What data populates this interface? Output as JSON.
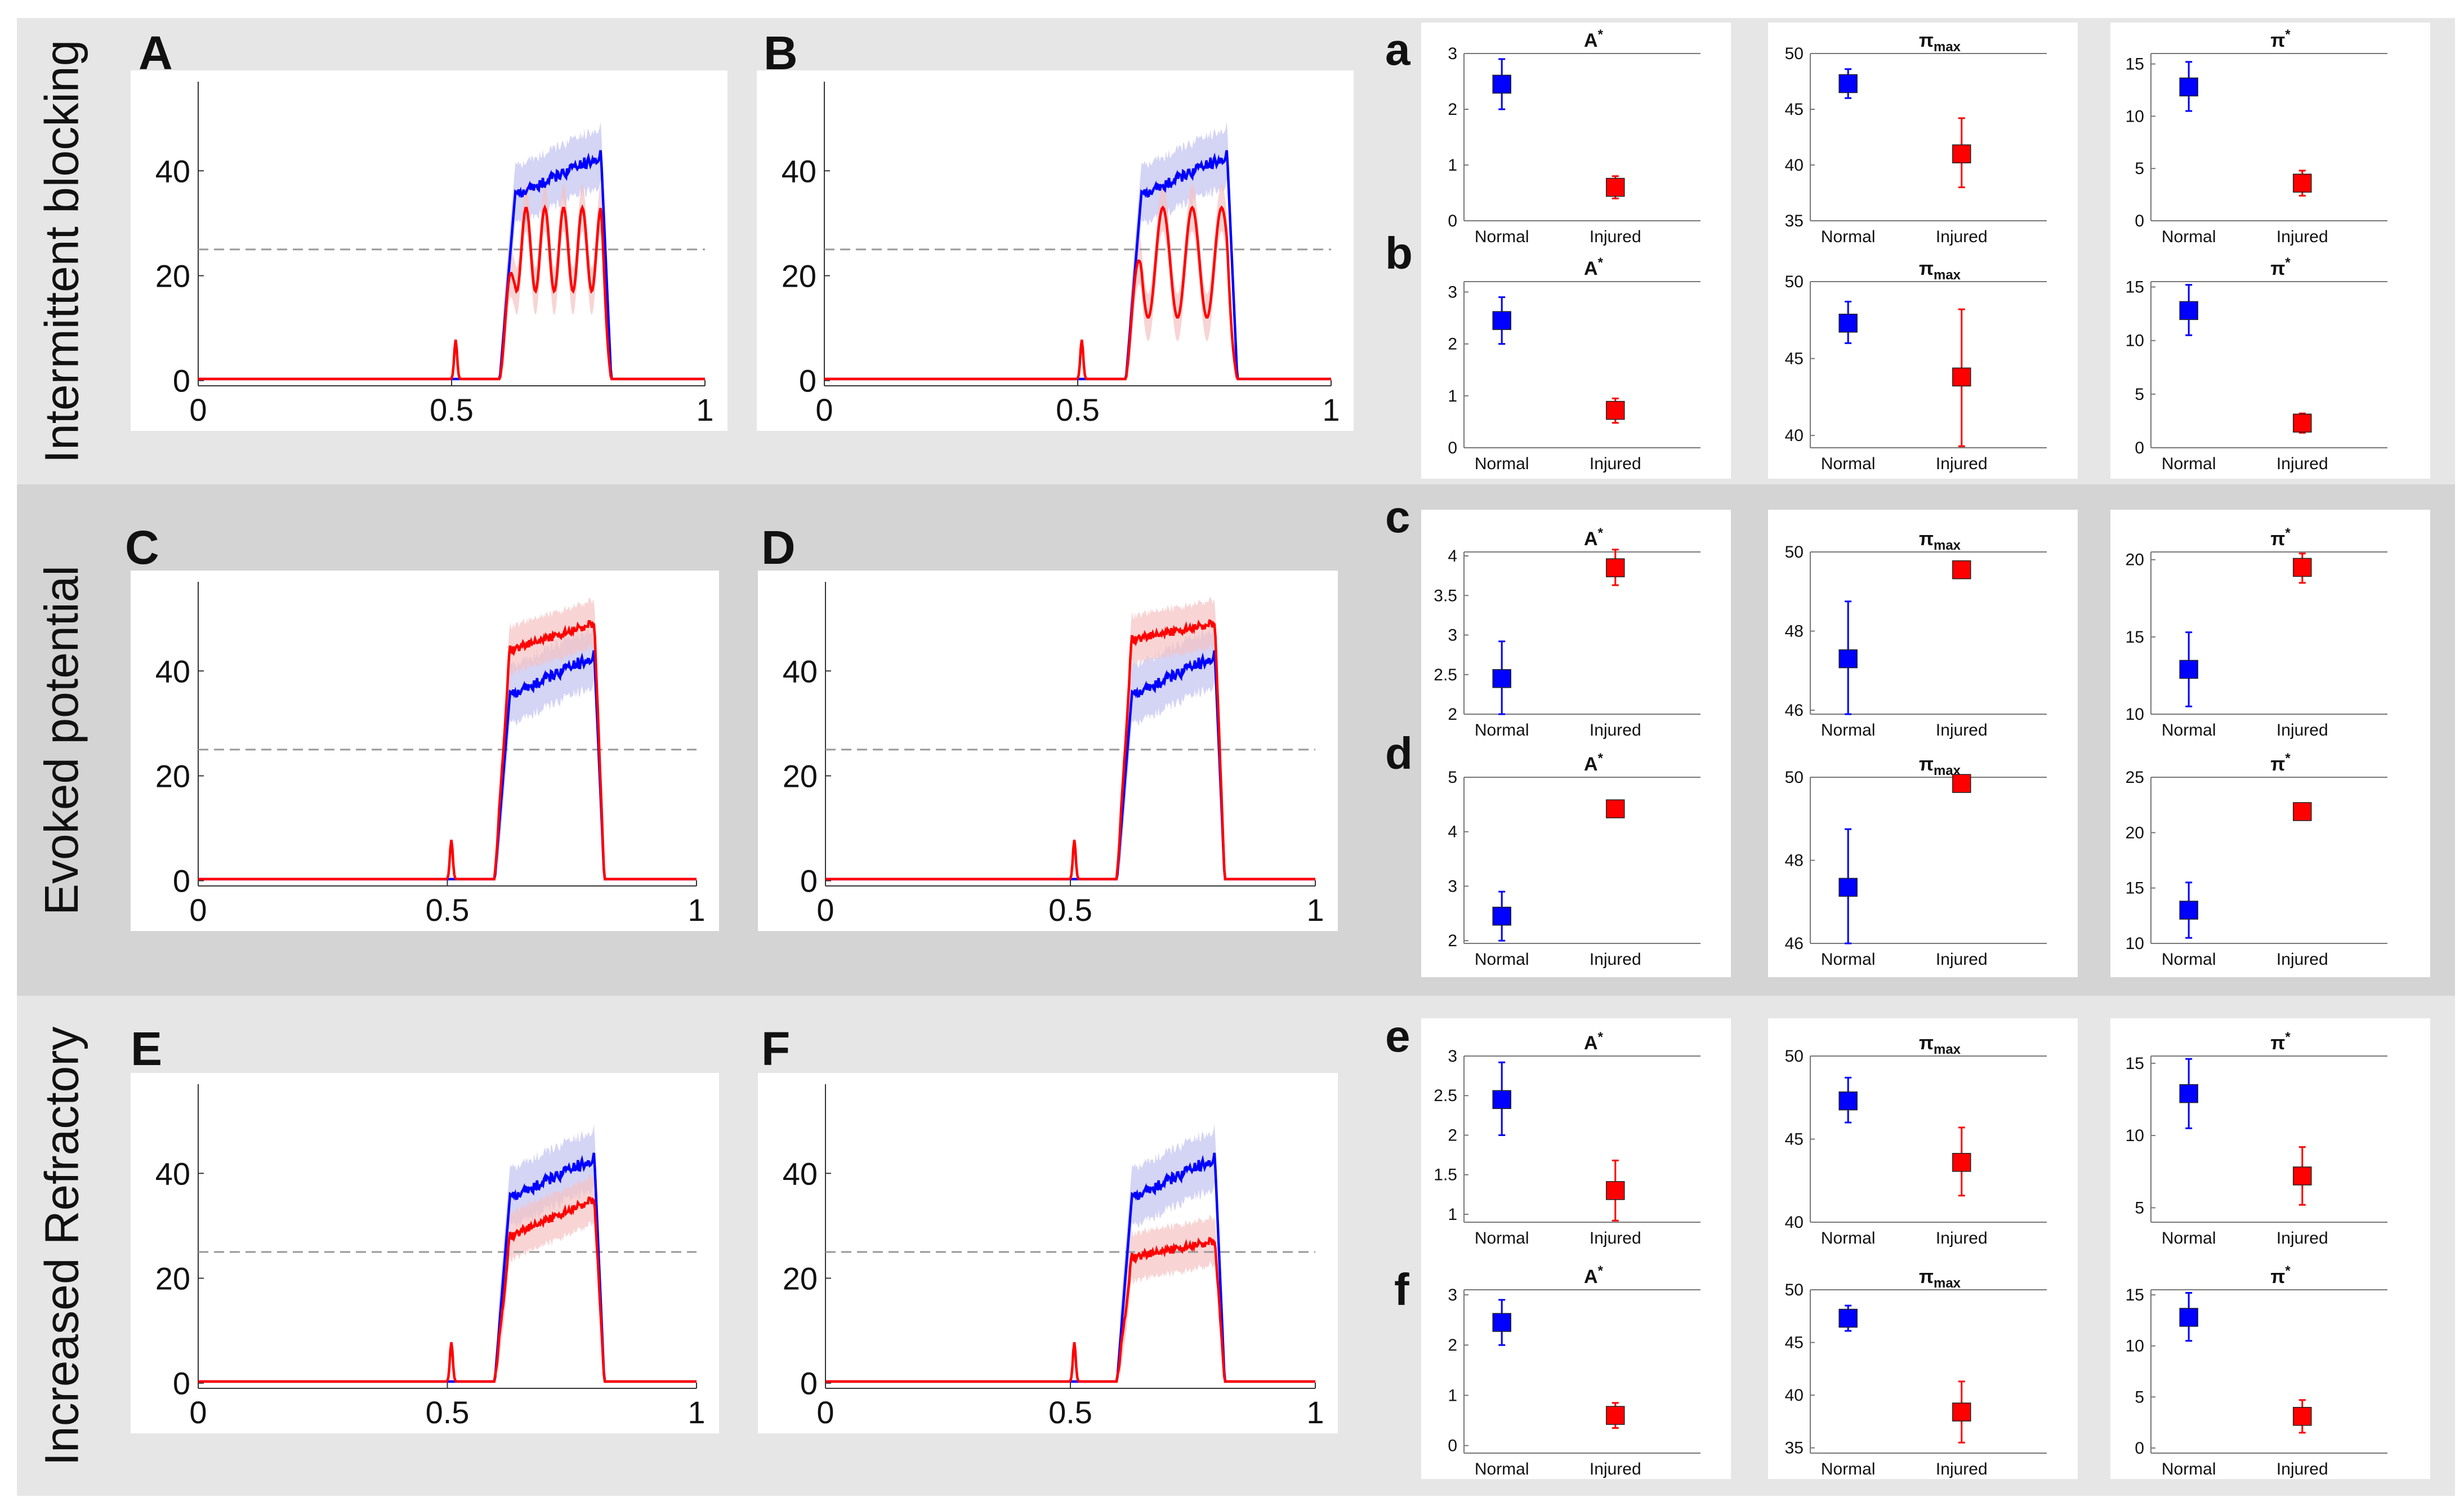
{
  "rows": [
    {
      "label": "Intermittent blocking"
    },
    {
      "label": "Evoked potential"
    },
    {
      "label": "Increased Refractory"
    }
  ],
  "colors": {
    "normal": "#0000ff",
    "injured": "#ff0000",
    "normal_band": "#c6c6f2",
    "injured_band": "#f5c2c2",
    "threshold": "#999999"
  },
  "chart_data": {
    "timeseries_panels": [
      {
        "label": "A",
        "type": "line",
        "x_ticks": [
          "0",
          "0.5",
          "1"
        ],
        "y_ticks": [
          "0",
          "20",
          "40"
        ],
        "xlim": [
          0,
          1
        ],
        "ylim": [
          -1,
          57
        ],
        "threshold": 25,
        "injured_mode": "oscillating",
        "blue_plateau": [
          35,
          43
        ],
        "red_peak": 33,
        "red_trough": 17
      },
      {
        "label": "B",
        "type": "line",
        "x_ticks": [
          "0",
          "0.5",
          "1"
        ],
        "y_ticks": [
          "0",
          "20",
          "40"
        ],
        "xlim": [
          0,
          1
        ],
        "ylim": [
          -1,
          57
        ],
        "threshold": 25,
        "injured_mode": "oscillating_slow",
        "blue_plateau": [
          35,
          43
        ],
        "red_peak": 33,
        "red_trough": 12
      },
      {
        "label": "C",
        "type": "line",
        "x_ticks": [
          "0",
          "0.5",
          "1"
        ],
        "y_ticks": [
          "0",
          "20",
          "40"
        ],
        "xlim": [
          0,
          1
        ],
        "ylim": [
          -1,
          57
        ],
        "threshold": 25,
        "injured_mode": "above",
        "blue_plateau": [
          35,
          43
        ],
        "red_plateau": [
          44,
          49
        ]
      },
      {
        "label": "D",
        "type": "line",
        "x_ticks": [
          "0",
          "0.5",
          "1"
        ],
        "y_ticks": [
          "0",
          "20",
          "40"
        ],
        "xlim": [
          0,
          1
        ],
        "ylim": [
          -1,
          57
        ],
        "threshold": 25,
        "injured_mode": "above",
        "blue_plateau": [
          35,
          43
        ],
        "red_plateau": [
          46,
          49
        ]
      },
      {
        "label": "E",
        "type": "line",
        "x_ticks": [
          "0",
          "0.5",
          "1"
        ],
        "y_ticks": [
          "0",
          "20",
          "40"
        ],
        "xlim": [
          0,
          1
        ],
        "ylim": [
          -1,
          57
        ],
        "threshold": 25,
        "injured_mode": "below",
        "blue_plateau": [
          35,
          43
        ],
        "red_plateau": [
          28,
          35
        ]
      },
      {
        "label": "F",
        "type": "line",
        "x_ticks": [
          "0",
          "0.5",
          "1"
        ],
        "y_ticks": [
          "0",
          "20",
          "40"
        ],
        "xlim": [
          0,
          1
        ],
        "ylim": [
          -1,
          57
        ],
        "threshold": 25,
        "injured_mode": "below",
        "blue_plateau": [
          35,
          43
        ],
        "red_plateau": [
          24,
          27
        ]
      }
    ],
    "summary_rows": [
      {
        "label": "a",
        "plots": [
          {
            "title_base": "A",
            "title_mod": "*",
            "mod_pos": "sup",
            "type": "scatter",
            "categories": [
              "Normal",
              "Injured"
            ],
            "ylim": [
              0,
              3
            ],
            "yticks": [
              "0",
              "1",
              "2",
              "3"
            ],
            "points": [
              {
                "mean": 2.45,
                "lo": 2.0,
                "hi": 2.9
              },
              {
                "mean": 0.6,
                "lo": 0.4,
                "hi": 0.8
              }
            ]
          },
          {
            "title_base": "π",
            "title_mod": "max",
            "mod_pos": "sub",
            "type": "scatter",
            "categories": [
              "Normal",
              "Injured"
            ],
            "ylim": [
              35,
              50
            ],
            "yticks": [
              "35",
              "40",
              "45",
              "50"
            ],
            "points": [
              {
                "mean": 47.3,
                "lo": 46.0,
                "hi": 48.6
              },
              {
                "mean": 41.0,
                "lo": 38.0,
                "hi": 44.2
              }
            ]
          },
          {
            "title_base": "π",
            "title_mod": "*",
            "mod_pos": "sup",
            "type": "scatter",
            "categories": [
              "Normal",
              "Injured"
            ],
            "ylim": [
              0,
              16
            ],
            "yticks": [
              "0",
              "5",
              "10",
              "15"
            ],
            "points": [
              {
                "mean": 12.8,
                "lo": 10.5,
                "hi": 15.2
              },
              {
                "mean": 3.6,
                "lo": 2.4,
                "hi": 4.8
              }
            ]
          }
        ]
      },
      {
        "label": "b",
        "plots": [
          {
            "title_base": "A",
            "title_mod": "*",
            "mod_pos": "sup",
            "type": "scatter",
            "categories": [
              "Normal",
              "Injured"
            ],
            "ylim": [
              0,
              3.2
            ],
            "yticks": [
              "0",
              "1",
              "2",
              "3"
            ],
            "points": [
              {
                "mean": 2.45,
                "lo": 2.0,
                "hi": 2.9
              },
              {
                "mean": 0.72,
                "lo": 0.48,
                "hi": 0.95
              }
            ]
          },
          {
            "title_base": "π",
            "title_mod": "max",
            "mod_pos": "sub",
            "type": "scatter",
            "categories": [
              "Normal",
              "Injured"
            ],
            "ylim": [
              39.2,
              50
            ],
            "yticks": [
              "40",
              "45",
              "50"
            ],
            "points": [
              {
                "mean": 47.3,
                "lo": 46.0,
                "hi": 48.7
              },
              {
                "mean": 43.8,
                "lo": 39.3,
                "hi": 48.2
              }
            ]
          },
          {
            "title_base": "π",
            "title_mod": "*",
            "mod_pos": "sup",
            "type": "scatter",
            "categories": [
              "Normal",
              "Injured"
            ],
            "ylim": [
              0,
              15.5
            ],
            "yticks": [
              "0",
              "5",
              "10",
              "15"
            ],
            "points": [
              {
                "mean": 12.8,
                "lo": 10.5,
                "hi": 15.2
              },
              {
                "mean": 2.3,
                "lo": 1.4,
                "hi": 3.2
              }
            ]
          }
        ]
      },
      {
        "label": "c",
        "plots": [
          {
            "title_base": "A",
            "title_mod": "*",
            "mod_pos": "sup",
            "type": "scatter",
            "categories": [
              "Normal",
              "Injured"
            ],
            "ylim": [
              2,
              4.05
            ],
            "yticks": [
              "2",
              "2.5",
              "3",
              "3.5",
              "4"
            ],
            "points": [
              {
                "mean": 2.45,
                "lo": 2.0,
                "hi": 2.92
              },
              {
                "mean": 3.85,
                "lo": 3.63,
                "hi": 4.08
              }
            ]
          },
          {
            "title_base": "π",
            "title_mod": "max",
            "mod_pos": "sub",
            "type": "scatter",
            "categories": [
              "Normal",
              "Injured"
            ],
            "ylim": [
              45.9,
              50
            ],
            "yticks": [
              "46",
              "48",
              "50"
            ],
            "points": [
              {
                "mean": 47.3,
                "lo": 45.9,
                "hi": 48.75
              },
              {
                "mean": 49.55,
                "lo": 49.35,
                "hi": 49.75
              }
            ]
          },
          {
            "title_base": "π",
            "title_mod": "*",
            "mod_pos": "sup",
            "type": "scatter",
            "categories": [
              "Normal",
              "Injured"
            ],
            "ylim": [
              10,
              20.5
            ],
            "yticks": [
              "10",
              "15",
              "20"
            ],
            "points": [
              {
                "mean": 12.9,
                "lo": 10.5,
                "hi": 15.3
              },
              {
                "mean": 19.5,
                "lo": 18.5,
                "hi": 20.4
              }
            ]
          }
        ]
      },
      {
        "label": "d",
        "plots": [
          {
            "title_base": "A",
            "title_mod": "*",
            "mod_pos": "sup",
            "type": "scatter",
            "categories": [
              "Normal",
              "Injured"
            ],
            "ylim": [
              1.95,
              5
            ],
            "yticks": [
              "2",
              "3",
              "4",
              "5"
            ],
            "points": [
              {
                "mean": 2.45,
                "lo": 2.0,
                "hi": 2.9
              },
              {
                "mean": 4.42,
                "lo": 4.35,
                "hi": 4.5
              }
            ]
          },
          {
            "title_base": "π",
            "title_mod": "max",
            "mod_pos": "sub",
            "type": "scatter",
            "categories": [
              "Normal",
              "Injured"
            ],
            "ylim": [
              46,
              50
            ],
            "yticks": [
              "46",
              "48",
              "50"
            ],
            "points": [
              {
                "mean": 47.35,
                "lo": 46.0,
                "hi": 48.75
              },
              {
                "mean": 49.85,
                "lo": 49.75,
                "hi": 49.95
              }
            ]
          },
          {
            "title_base": "π",
            "title_mod": "*",
            "mod_pos": "sup",
            "type": "scatter",
            "categories": [
              "Normal",
              "Injured"
            ],
            "ylim": [
              10,
              25
            ],
            "yticks": [
              "10",
              "15",
              "20",
              "25"
            ],
            "points": [
              {
                "mean": 13.0,
                "lo": 10.5,
                "hi": 15.5
              },
              {
                "mean": 21.9,
                "lo": 21.5,
                "hi": 22.3
              }
            ]
          }
        ]
      },
      {
        "label": "e",
        "plots": [
          {
            "title_base": "A",
            "title_mod": "*",
            "mod_pos": "sup",
            "type": "scatter",
            "categories": [
              "Normal",
              "Injured"
            ],
            "ylim": [
              0.9,
              3
            ],
            "yticks": [
              "1",
              "1.5",
              "2",
              "2.5",
              "3"
            ],
            "points": [
              {
                "mean": 2.45,
                "lo": 2.0,
                "hi": 2.92
              },
              {
                "mean": 1.3,
                "lo": 0.92,
                "hi": 1.68
              }
            ]
          },
          {
            "title_base": "π",
            "title_mod": "max",
            "mod_pos": "sub",
            "type": "scatter",
            "categories": [
              "Normal",
              "Injured"
            ],
            "ylim": [
              40,
              50
            ],
            "yticks": [
              "40",
              "45",
              "50"
            ],
            "points": [
              {
                "mean": 47.3,
                "lo": 46.0,
                "hi": 48.7
              },
              {
                "mean": 43.6,
                "lo": 41.6,
                "hi": 45.7
              }
            ]
          },
          {
            "title_base": "π",
            "title_mod": "*",
            "mod_pos": "sup",
            "type": "scatter",
            "categories": [
              "Normal",
              "Injured"
            ],
            "ylim": [
              4,
              15.5
            ],
            "yticks": [
              "5",
              "10",
              "15"
            ],
            "points": [
              {
                "mean": 12.9,
                "lo": 10.5,
                "hi": 15.3
              },
              {
                "mean": 7.2,
                "lo": 5.2,
                "hi": 9.2
              }
            ]
          }
        ]
      },
      {
        "label": "f",
        "plots": [
          {
            "title_base": "A",
            "title_mod": "*",
            "mod_pos": "sup",
            "type": "scatter",
            "categories": [
              "Normal",
              "Injured"
            ],
            "ylim": [
              -0.15,
              3.1
            ],
            "yticks": [
              "0",
              "1",
              "2",
              "3"
            ],
            "points": [
              {
                "mean": 2.45,
                "lo": 2.0,
                "hi": 2.9
              },
              {
                "mean": 0.6,
                "lo": 0.35,
                "hi": 0.85
              }
            ]
          },
          {
            "title_base": "π",
            "title_mod": "max",
            "mod_pos": "sub",
            "type": "scatter",
            "categories": [
              "Normal",
              "Injured"
            ],
            "ylim": [
              34.5,
              50
            ],
            "yticks": [
              "35",
              "40",
              "45",
              "50"
            ],
            "points": [
              {
                "mean": 47.3,
                "lo": 46.1,
                "hi": 48.5
              },
              {
                "mean": 38.4,
                "lo": 35.5,
                "hi": 41.3
              }
            ]
          },
          {
            "title_base": "π",
            "title_mod": "*",
            "mod_pos": "sup",
            "type": "scatter",
            "categories": [
              "Normal",
              "Injured"
            ],
            "ylim": [
              -0.5,
              15.5
            ],
            "yticks": [
              "0",
              "5",
              "10",
              "15"
            ],
            "points": [
              {
                "mean": 12.8,
                "lo": 10.5,
                "hi": 15.2
              },
              {
                "mean": 3.1,
                "lo": 1.5,
                "hi": 4.7
              }
            ]
          }
        ]
      }
    ]
  }
}
